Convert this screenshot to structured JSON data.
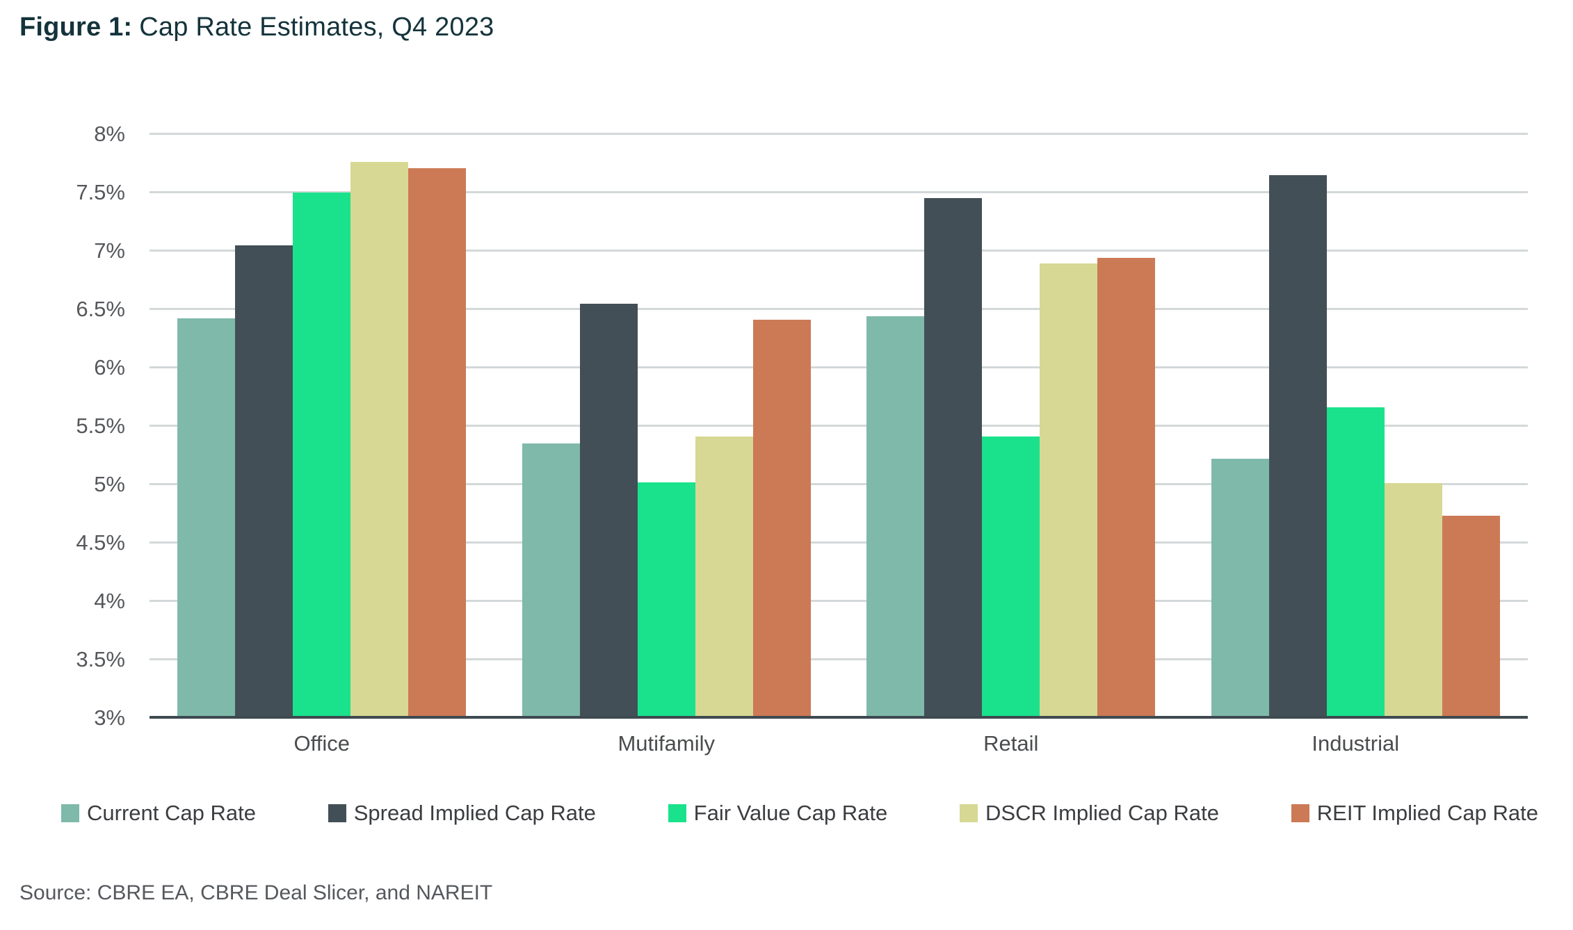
{
  "figure": {
    "title_prefix": "Figure 1:",
    "title_text": "Cap Rate Estimates, Q4 2023",
    "source": "Source: CBRE EA, CBRE Deal Slicer, and NAREIT"
  },
  "chart_data": {
    "type": "bar",
    "title": "Figure 1: Cap Rate Estimates, Q4 2023",
    "categories": [
      "Office",
      "Mutifamily",
      "Retail",
      "Industrial"
    ],
    "series": [
      {
        "name": "Current Cap Rate",
        "color": "#7FB9AA",
        "values": [
          6.42,
          5.35,
          6.44,
          5.22
        ]
      },
      {
        "name": "Spread Implied Cap Rate",
        "color": "#434F56",
        "values": [
          7.05,
          6.55,
          7.45,
          7.65
        ]
      },
      {
        "name": "Fair Value Cap Rate",
        "color": "#1AE28C",
        "values": [
          7.5,
          5.02,
          5.41,
          5.66
        ]
      },
      {
        "name": "DSCR Implied Cap Rate",
        "color": "#D7D893",
        "values": [
          7.76,
          5.41,
          6.89,
          5.01
        ]
      },
      {
        "name": "REIT Implied Cap Rate",
        "color": "#CC7956",
        "values": [
          7.71,
          6.41,
          6.94,
          4.73
        ]
      }
    ],
    "y_axis": {
      "min": 3,
      "max": 8,
      "step": 0.5,
      "tick_labels": [
        "3%",
        "3.5%",
        "4%",
        "4.5%",
        "5%",
        "5.5%",
        "6%",
        "6.5%",
        "7%",
        "7.5%",
        "8%"
      ]
    },
    "ylim": [
      3,
      8
    ],
    "grid": true,
    "legend_position": "bottom",
    "styles": {
      "gridline_color": "#D3D8D9",
      "axis_line_color": "#3E4A50",
      "title_color": "#14333B",
      "tick_label_color": "#55575B",
      "category_label_color": "#4A4C4E",
      "legend_text_color": "#3B3D40",
      "source_text_color": "#55585C",
      "background_color": "#FFFFFF"
    }
  }
}
